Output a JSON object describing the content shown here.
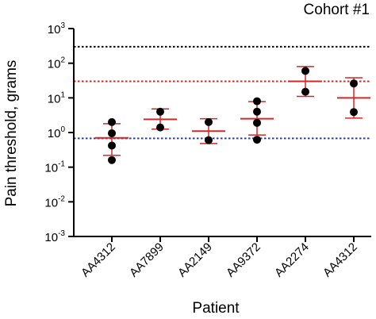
{
  "chart_data": {
    "type": "scatter",
    "title": "Cohort #1",
    "xlabel": "Patient",
    "ylabel": "Pain threshold, grams",
    "yscale": "log",
    "ylim": [
      0.001,
      1000
    ],
    "y_ticks": [
      {
        "base": "10",
        "exp": "3",
        "value": 1000
      },
      {
        "base": "10",
        "exp": "2",
        "value": 100
      },
      {
        "base": "10",
        "exp": "1",
        "value": 10
      },
      {
        "base": "10",
        "exp": "0",
        "value": 1
      },
      {
        "base": "10",
        "exp": "-1",
        "value": 0.1
      },
      {
        "base": "10",
        "exp": "-2",
        "value": 0.01
      },
      {
        "base": "10",
        "exp": "-3",
        "value": 0.001
      }
    ],
    "categories": [
      "AA4312",
      "AA7899",
      "AA2149",
      "AA9372",
      "AA2274",
      "AA4312"
    ],
    "groups": [
      {
        "points": [
          2.0,
          0.95,
          0.42,
          0.16
        ],
        "mean": 0.7,
        "err_low": 0.22,
        "err_high": 1.8
      },
      {
        "points": [
          4.0,
          1.4
        ],
        "mean": 2.4,
        "err_low": 1.25,
        "err_high": 4.8
      },
      {
        "points": [
          2.0,
          0.6
        ],
        "mean": 1.1,
        "err_low": 0.48,
        "err_high": 2.5
      },
      {
        "points": [
          8.0,
          4.0,
          1.9,
          0.62
        ],
        "mean": 2.5,
        "err_low": 0.85,
        "err_high": 7.8
      },
      {
        "points": [
          60.0,
          15.0
        ],
        "mean": 30.0,
        "err_low": 11.0,
        "err_high": 80.0
      },
      {
        "points": [
          26.0,
          3.9
        ],
        "mean": 10.0,
        "err_low": 2.6,
        "err_high": 38.0
      }
    ],
    "reference_lines": [
      {
        "value": 300,
        "color": "#000000"
      },
      {
        "value": 30,
        "color": "#d62728"
      },
      {
        "value": 0.68,
        "color": "#2e3d9a"
      }
    ],
    "colors": {
      "points": "#000000",
      "mean_bar": "#d62728",
      "axis": "#000000"
    }
  }
}
